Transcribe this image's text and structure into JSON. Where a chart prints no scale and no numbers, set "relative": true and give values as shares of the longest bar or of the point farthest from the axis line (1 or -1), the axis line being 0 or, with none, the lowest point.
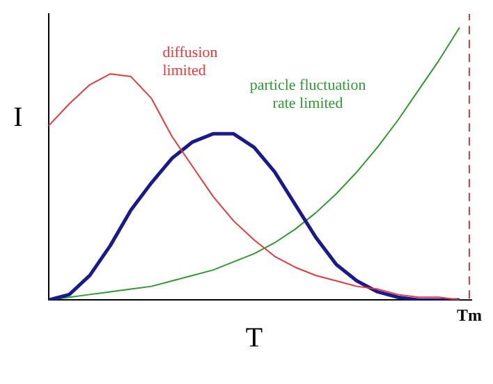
{
  "chart_data": {
    "type": "line",
    "relative": true,
    "xlabel": "T",
    "ylabel": "I",
    "legend": false,
    "grid": false,
    "marker": "none",
    "categories": [
      null,
      null,
      null,
      null,
      null,
      null,
      null,
      null,
      null,
      null,
      null,
      null,
      null,
      null,
      null,
      null,
      null,
      null,
      null,
      null,
      null
    ],
    "series": [
      {
        "name": "diffusion limited",
        "color": "#e8383d",
        "values": [
          0.64,
          0.72,
          0.79,
          0.83,
          0.82,
          0.74,
          0.6,
          0.49,
          0.38,
          0.29,
          0.22,
          0.16,
          0.12,
          0.09,
          0.07,
          0.05,
          0.04,
          0.02,
          0.01,
          0.01,
          0
        ]
      },
      {
        "color": "#1a1a8c",
        "values": [
          0,
          0.02,
          0.09,
          0.2,
          0.33,
          0.43,
          0.52,
          0.58,
          0.61,
          0.61,
          0.56,
          0.47,
          0.35,
          0.23,
          0.13,
          0.07,
          0.03,
          0.01,
          0,
          0,
          0
        ]
      },
      {
        "name": "particle fluctuation rate limited",
        "color": "#2e9a2e",
        "values": [
          0,
          0.01,
          0.02,
          0.03,
          0.04,
          0.05,
          0.07,
          0.09,
          0.11,
          0.14,
          0.17,
          0.21,
          0.26,
          0.32,
          0.39,
          0.47,
          0.56,
          0.66,
          0.77,
          0.88,
          1
        ]
      }
    ],
    "ref_lines": [
      {
        "axis": "x",
        "label": "Tm",
        "color": "#e8383d",
        "line_style": "dashed"
      }
    ]
  }
}
